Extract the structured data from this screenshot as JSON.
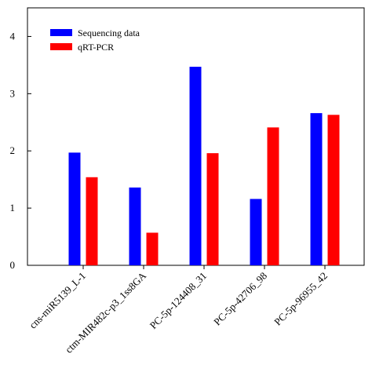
{
  "chart_data": {
    "type": "bar",
    "title": "",
    "xlabel": "",
    "ylabel": "",
    "categories": [
      "cns-miR5139_L-1",
      "ctm-MIR482c-p3_1ss8GA",
      "PC-5p-124408_31",
      "PC-5p-42706_98",
      "PC-5p-96955_42"
    ],
    "series": [
      {
        "name": "Sequencing data",
        "color": "#0000FF",
        "values": [
          1.97,
          1.36,
          3.47,
          1.16,
          2.66
        ]
      },
      {
        "name": "qRT-PCR",
        "color": "#FF0000",
        "values": [
          1.54,
          0.57,
          1.96,
          2.41,
          2.63
        ]
      }
    ],
    "ylim": [
      0,
      4.5
    ],
    "yticks": [
      "0",
      "1",
      "2",
      "3",
      "4"
    ],
    "grid": false,
    "legend_position": "top-left"
  }
}
